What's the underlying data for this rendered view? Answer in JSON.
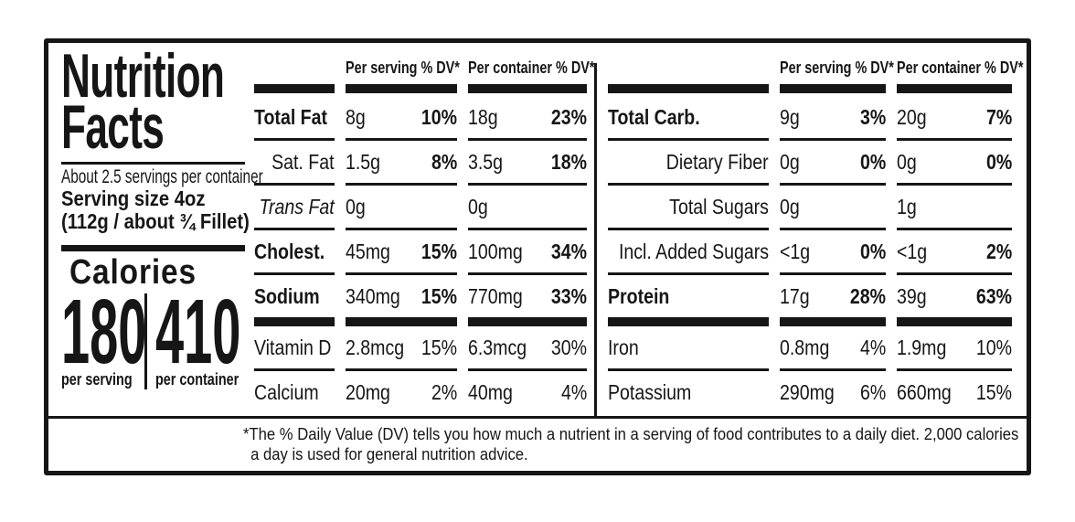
{
  "label": {
    "title": {
      "line1": "Nutrition",
      "line2": "Facts"
    },
    "servings_per_container": "About 2.5 servings per container",
    "serving_size": {
      "line1": "Serving size 4oz",
      "line2": "(112g / about ¾ Fillet)"
    },
    "calories": {
      "word": "Calories",
      "per_serving_value": "180",
      "per_container_value": "410",
      "per_serving_label": "per serving",
      "per_container_label": "per container"
    },
    "column_headers": {
      "per_serving": "Per serving % DV*",
      "per_container": "Per container % DV*"
    },
    "tables": {
      "left": {
        "rows": [
          {
            "name": "Total Fat",
            "style": "major",
            "bold_dv": true,
            "per_serving": {
              "amount": "8g",
              "dv": "10%"
            },
            "per_container": {
              "amount": "18g",
              "dv": "23%"
            }
          },
          {
            "name": "Sat. Fat",
            "style": "sub",
            "bold_dv": true,
            "per_serving": {
              "amount": "1.5g",
              "dv": "8%"
            },
            "per_container": {
              "amount": "3.5g",
              "dv": "18%"
            }
          },
          {
            "name": "Trans Fat",
            "style": "sub-italic",
            "bold_dv": false,
            "per_serving": {
              "amount": "0g",
              "dv": ""
            },
            "per_container": {
              "amount": "0g",
              "dv": ""
            }
          },
          {
            "name": "Cholest.",
            "style": "major",
            "bold_dv": true,
            "per_serving": {
              "amount": "45mg",
              "dv": "15%"
            },
            "per_container": {
              "amount": "100mg",
              "dv": "34%"
            }
          },
          {
            "name": "Sodium",
            "style": "major",
            "bold_dv": true,
            "thick_bar_after": true,
            "per_serving": {
              "amount": "340mg",
              "dv": "15%"
            },
            "per_container": {
              "amount": "770mg",
              "dv": "33%"
            }
          },
          {
            "name": "Vitamin D",
            "style": "plain",
            "bold_dv": false,
            "per_serving": {
              "amount": "2.8mcg",
              "dv": "15%"
            },
            "per_container": {
              "amount": "6.3mcg",
              "dv": "30%"
            }
          },
          {
            "name": "Calcium",
            "style": "plain",
            "bold_dv": false,
            "per_serving": {
              "amount": "20mg",
              "dv": "2%"
            },
            "per_container": {
              "amount": "40mg",
              "dv": "4%"
            }
          }
        ]
      },
      "right": {
        "rows": [
          {
            "name": "Total Carb.",
            "style": "major",
            "bold_dv": true,
            "per_serving": {
              "amount": "9g",
              "dv": "3%"
            },
            "per_container": {
              "amount": "20g",
              "dv": "7%"
            }
          },
          {
            "name": "Dietary Fiber",
            "style": "sub",
            "bold_dv": true,
            "per_serving": {
              "amount": "0g",
              "dv": "0%"
            },
            "per_container": {
              "amount": "0g",
              "dv": "0%"
            }
          },
          {
            "name": "Total Sugars",
            "style": "sub",
            "bold_dv": false,
            "per_serving": {
              "amount": "0g",
              "dv": ""
            },
            "per_container": {
              "amount": "1g",
              "dv": ""
            }
          },
          {
            "name": "Incl. Added Sugars",
            "style": "sub",
            "bold_dv": true,
            "per_serving": {
              "amount": "<1g",
              "dv": "0%"
            },
            "per_container": {
              "amount": "<1g",
              "dv": "2%"
            }
          },
          {
            "name": "Protein",
            "style": "major",
            "bold_dv": true,
            "thick_bar_after": true,
            "per_serving": {
              "amount": "17g",
              "dv": "28%"
            },
            "per_container": {
              "amount": "39g",
              "dv": "63%"
            }
          },
          {
            "name": "Iron",
            "style": "plain",
            "bold_dv": false,
            "per_serving": {
              "amount": "0.8mg",
              "dv": "4%"
            },
            "per_container": {
              "amount": "1.9mg",
              "dv": "10%"
            }
          },
          {
            "name": "Potassium",
            "style": "plain",
            "bold_dv": false,
            "per_serving": {
              "amount": "290mg",
              "dv": "6%"
            },
            "per_container": {
              "amount": "660mg",
              "dv": "15%"
            }
          }
        ]
      }
    },
    "footnote": "*The % Daily Value (DV) tells you how much a nutrient in a serving of food contributes to a daily diet. 2,000 calories a day is used for general nutrition advice.",
    "colors": {
      "ink": "#161616",
      "background": "#ffffff"
    }
  }
}
